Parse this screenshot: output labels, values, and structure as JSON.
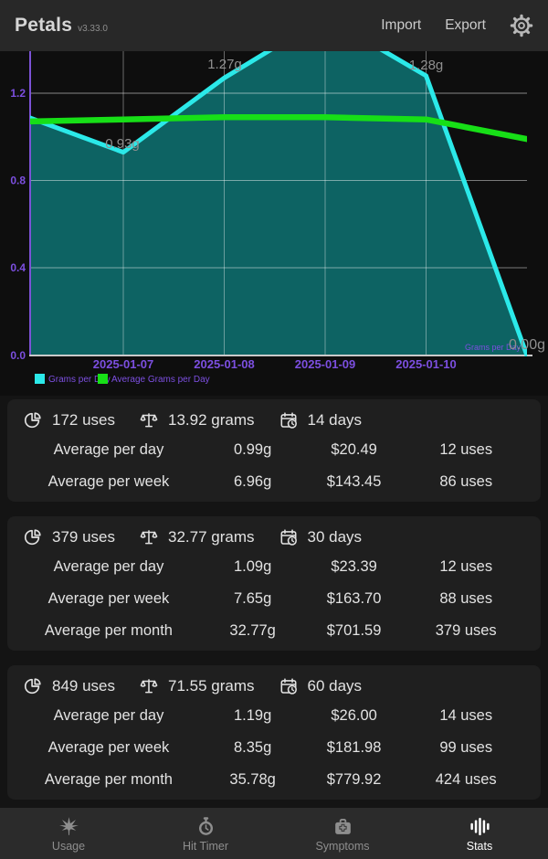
{
  "header": {
    "app_title": "Petals",
    "version": "v3.33.0",
    "actions": [
      {
        "label": "Import"
      },
      {
        "label": "Export"
      }
    ]
  },
  "chart_data": {
    "type": "area",
    "x_tick_labels": [
      "2025-01-07",
      "2025-01-08",
      "2025-01-09",
      "2025-01-10"
    ],
    "y_tick_labels": [
      "1.2",
      "0.8",
      "0.4",
      "0.0"
    ],
    "y_ticks": [
      1.2,
      0.8,
      0.4,
      0.0
    ],
    "ylim": [
      0,
      1.39
    ],
    "grid": true,
    "legend_position": "bottom-left",
    "axis_color": "#7C4FE0",
    "in_chart_series_label": "Grams per Day",
    "series": [
      {
        "name": "Grams per Day",
        "type": "area",
        "color": "#2BE9E9",
        "fill": "#0D6363",
        "values": [
          1.1,
          0.93,
          1.27,
          1.55,
          1.28,
          0.0
        ],
        "point_labels": [
          "",
          "0.93g",
          "1.27g",
          "",
          "1.28g",
          "0.00g"
        ]
      },
      {
        "name": "Average Grams per Day",
        "type": "line",
        "color": "#17DF17",
        "values": [
          1.07,
          1.08,
          1.09,
          1.09,
          1.08,
          0.99
        ]
      }
    ]
  },
  "cards": [
    {
      "summary": [
        {
          "icon": "pie-chart-icon",
          "text": "172 uses"
        },
        {
          "icon": "scale-icon",
          "text": "13.92 grams"
        },
        {
          "icon": "calendar-clock-icon",
          "text": "14 days"
        }
      ],
      "rows": [
        [
          "Average per day",
          "0.99g",
          "$20.49",
          "12 uses"
        ],
        [
          "Average per week",
          "6.96g",
          "$143.45",
          "86 uses"
        ]
      ]
    },
    {
      "summary": [
        {
          "icon": "pie-chart-icon",
          "text": "379 uses"
        },
        {
          "icon": "scale-icon",
          "text": "32.77 grams"
        },
        {
          "icon": "calendar-clock-icon",
          "text": "30 days"
        }
      ],
      "rows": [
        [
          "Average per day",
          "1.09g",
          "$23.39",
          "12 uses"
        ],
        [
          "Average per week",
          "7.65g",
          "$163.70",
          "88 uses"
        ],
        [
          "Average per month",
          "32.77g",
          "$701.59",
          "379 uses"
        ]
      ]
    },
    {
      "summary": [
        {
          "icon": "pie-chart-icon",
          "text": "849 uses"
        },
        {
          "icon": "scale-icon",
          "text": "71.55 grams"
        },
        {
          "icon": "calendar-clock-icon",
          "text": "60 days"
        }
      ],
      "rows": [
        [
          "Average per day",
          "1.19g",
          "$26.00",
          "14 uses"
        ],
        [
          "Average per week",
          "8.35g",
          "$181.98",
          "99 uses"
        ],
        [
          "Average per month",
          "35.78g",
          "$779.92",
          "424 uses"
        ]
      ]
    }
  ],
  "nav": {
    "items": [
      {
        "label": "Usage",
        "icon": "cannabis-leaf-icon",
        "active": false
      },
      {
        "label": "Hit Timer",
        "icon": "stopwatch-icon",
        "active": false
      },
      {
        "label": "Symptoms",
        "icon": "first-aid-kit-icon",
        "active": false
      },
      {
        "label": "Stats",
        "icon": "stats-bars-icon",
        "active": true
      }
    ]
  }
}
